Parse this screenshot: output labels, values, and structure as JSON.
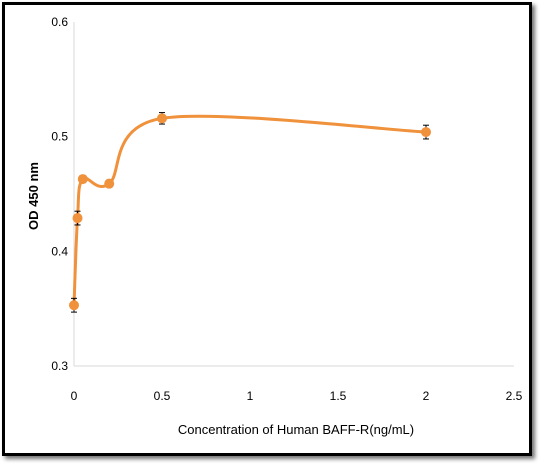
{
  "chart_data": {
    "type": "line",
    "title": "",
    "xlabel": "Concentration of Human BAFF-R(ng/mL)",
    "ylabel": "OD 450 nm",
    "xlim": [
      0,
      2.5
    ],
    "ylim": [
      0.3,
      0.6
    ],
    "xticks": [
      0,
      0.5,
      1,
      1.5,
      2,
      2.5
    ],
    "xtick_labels": [
      "0",
      "0.5",
      "1",
      "1.5",
      "2",
      "2.5"
    ],
    "yticks": [
      0.3,
      0.4,
      0.5,
      0.6
    ],
    "ytick_labels": [
      "0.3",
      "0.4",
      "0.5",
      "0.6"
    ],
    "grid": false,
    "smooth": true,
    "series": [
      {
        "x": [
          0,
          0.02,
          0.05,
          0.2,
          0.5,
          2
        ],
        "y": [
          0.353,
          0.429,
          0.463,
          0.459,
          0.516,
          0.504
        ],
        "error": [
          0.006,
          0.006,
          0.003,
          0.003,
          0.005,
          0.006
        ],
        "color": "#f0913c"
      }
    ]
  }
}
